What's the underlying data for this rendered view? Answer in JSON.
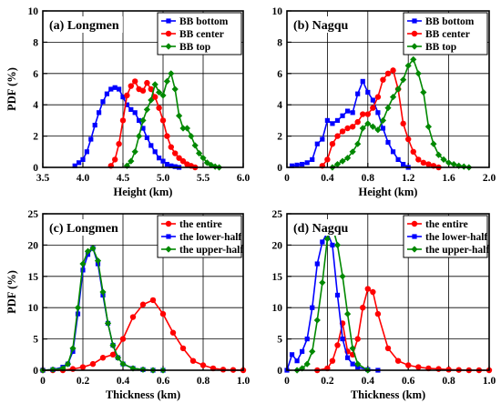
{
  "colors": {
    "bottom": "#0000ff",
    "center": "#ff0000",
    "top": "#008800"
  },
  "chart_data": [
    {
      "type": "line",
      "title": "(a) Longmen",
      "xlabel": "Height (km)",
      "ylabel": "PDF (%)",
      "xlim": [
        3.5,
        6.0
      ],
      "ylim": [
        0,
        10
      ],
      "xticks": [
        3.5,
        4.0,
        4.5,
        5.0,
        5.5,
        6.0
      ],
      "xtick_labels": [
        "3.5",
        "4.0",
        "4.5",
        "5.0",
        "5.5",
        "6.0"
      ],
      "yticks": [
        0,
        2,
        4,
        6,
        8,
        10
      ],
      "ytick_labels": [
        "0",
        "2",
        "4",
        "6",
        "8",
        "10"
      ],
      "grid": true,
      "legend_position": "top-right",
      "series": [
        {
          "name": "BB bottom",
          "color_key": "bottom",
          "marker": "square",
          "x": [
            3.9,
            3.95,
            4.0,
            4.05,
            4.1,
            4.15,
            4.2,
            4.25,
            4.3,
            4.35,
            4.4,
            4.45,
            4.5,
            4.55,
            4.6,
            4.65,
            4.7,
            4.75,
            4.8,
            4.85,
            4.9,
            4.95,
            5.0,
            5.05,
            5.1,
            5.15,
            5.2
          ],
          "y": [
            0.1,
            0.3,
            0.5,
            1.0,
            1.8,
            2.7,
            3.5,
            4.2,
            4.7,
            5.0,
            5.1,
            5.0,
            4.5,
            4.0,
            3.7,
            3.5,
            3.0,
            2.5,
            1.9,
            1.4,
            1.0,
            0.6,
            0.4,
            0.2,
            0.1,
            0.05,
            0.0
          ]
        },
        {
          "name": "BB center",
          "color_key": "center",
          "marker": "circle",
          "x": [
            4.35,
            4.4,
            4.45,
            4.5,
            4.55,
            4.6,
            4.65,
            4.7,
            4.75,
            4.8,
            4.85,
            4.9,
            4.95,
            5.0,
            5.05,
            5.1,
            5.15,
            5.2,
            5.25,
            5.3,
            5.35,
            5.4
          ],
          "y": [
            0.1,
            0.5,
            1.5,
            3.0,
            4.6,
            5.2,
            5.5,
            5.0,
            4.9,
            5.4,
            5.0,
            4.5,
            3.8,
            3.0,
            2.0,
            1.3,
            0.9,
            0.6,
            0.4,
            0.2,
            0.1,
            0.0
          ]
        },
        {
          "name": "BB top",
          "color_key": "top",
          "marker": "diamond",
          "x": [
            4.55,
            4.6,
            4.65,
            4.7,
            4.75,
            4.8,
            4.85,
            4.9,
            4.95,
            5.0,
            5.05,
            5.1,
            5.15,
            5.2,
            5.25,
            5.3,
            5.35,
            5.4,
            5.45,
            5.5,
            5.55,
            5.6,
            5.65,
            5.7
          ],
          "y": [
            0.1,
            0.4,
            1.0,
            2.0,
            3.0,
            3.7,
            4.3,
            5.3,
            4.8,
            4.6,
            5.5,
            6.0,
            5.0,
            3.3,
            2.5,
            2.5,
            2.0,
            1.4,
            0.9,
            0.6,
            0.3,
            0.15,
            0.05,
            0.0
          ]
        }
      ]
    },
    {
      "type": "line",
      "title": "(b) Nagqu",
      "xlabel": "Height (km)",
      "ylabel": "",
      "xlim": [
        0,
        2.0
      ],
      "ylim": [
        0,
        10
      ],
      "xticks": [
        0,
        0.4,
        0.8,
        1.2,
        1.6,
        2.0
      ],
      "xtick_labels": [
        "0",
        "0.4",
        "0.8",
        "1.2",
        "1.6",
        "2.0"
      ],
      "yticks": [
        0,
        2,
        4,
        6,
        8,
        10
      ],
      "ytick_labels": [
        "0",
        "2",
        "4",
        "6",
        "8",
        "10"
      ],
      "grid": true,
      "legend_position": "top-right",
      "series": [
        {
          "name": "BB bottom",
          "color_key": "bottom",
          "marker": "square",
          "x": [
            0.05,
            0.1,
            0.15,
            0.2,
            0.25,
            0.3,
            0.35,
            0.4,
            0.45,
            0.5,
            0.55,
            0.6,
            0.65,
            0.7,
            0.75,
            0.8,
            0.85,
            0.9,
            0.95,
            1.0,
            1.05,
            1.1,
            1.15,
            1.2
          ],
          "y": [
            0.1,
            0.15,
            0.2,
            0.3,
            0.5,
            1.5,
            1.8,
            3.0,
            2.8,
            3.0,
            3.3,
            3.6,
            3.5,
            4.7,
            5.5,
            4.8,
            4.3,
            3.5,
            2.5,
            1.6,
            1.0,
            0.5,
            0.2,
            0.0
          ]
        },
        {
          "name": "BB center",
          "color_key": "center",
          "marker": "circle",
          "x": [
            0.35,
            0.4,
            0.45,
            0.5,
            0.55,
            0.6,
            0.65,
            0.7,
            0.75,
            0.8,
            0.85,
            0.9,
            0.95,
            1.0,
            1.05,
            1.1,
            1.15,
            1.2,
            1.25,
            1.3,
            1.35,
            1.4,
            1.45,
            1.5
          ],
          "y": [
            0.1,
            0.5,
            1.5,
            2.0,
            2.3,
            2.5,
            2.6,
            2.9,
            3.4,
            3.4,
            3.8,
            4.5,
            5.6,
            6.0,
            6.2,
            5.0,
            2.8,
            1.8,
            1.0,
            0.5,
            0.3,
            0.2,
            0.1,
            0.0
          ]
        },
        {
          "name": "BB top",
          "color_key": "top",
          "marker": "diamond",
          "x": [
            0.45,
            0.5,
            0.55,
            0.6,
            0.65,
            0.7,
            0.75,
            0.8,
            0.85,
            0.9,
            0.95,
            1.0,
            1.05,
            1.1,
            1.15,
            1.2,
            1.25,
            1.3,
            1.35,
            1.4,
            1.45,
            1.5,
            1.55,
            1.6,
            1.65,
            1.7,
            1.75,
            1.8
          ],
          "y": [
            0.0,
            0.2,
            0.4,
            0.6,
            1.0,
            1.5,
            2.5,
            2.8,
            2.6,
            2.4,
            3.0,
            3.8,
            4.5,
            5.0,
            5.6,
            6.5,
            6.9,
            6.0,
            4.8,
            2.6,
            1.5,
            0.8,
            0.5,
            0.3,
            0.2,
            0.1,
            0.05,
            0.0
          ]
        }
      ]
    },
    {
      "type": "line",
      "title": "(c) Longmen",
      "xlabel": "Thickness (km)",
      "ylabel": "PDF (%)",
      "xlim": [
        0,
        1.0
      ],
      "ylim": [
        0,
        25
      ],
      "xticks": [
        0,
        0.2,
        0.4,
        0.6,
        0.8,
        1.0
      ],
      "xtick_labels": [
        "0",
        "0.2",
        "0.4",
        "0.6",
        "0.8",
        "1.0"
      ],
      "yticks": [
        0,
        5,
        10,
        15,
        20,
        25
      ],
      "ytick_labels": [
        "0",
        "5",
        "10",
        "15",
        "20",
        "25"
      ],
      "grid": true,
      "legend_position": "top-right",
      "series": [
        {
          "name": "the entire",
          "color_key": "center",
          "marker": "circle",
          "x": [
            0.0,
            0.05,
            0.1,
            0.15,
            0.2,
            0.25,
            0.3,
            0.35,
            0.4,
            0.45,
            0.5,
            0.55,
            0.6,
            0.65,
            0.7,
            0.75,
            0.8,
            0.85,
            0.9,
            0.95,
            1.0
          ],
          "y": [
            0.0,
            0.0,
            0.0,
            0.2,
            0.5,
            1.0,
            2.0,
            2.5,
            5.0,
            8.5,
            10.5,
            11.2,
            9.0,
            6.0,
            3.5,
            1.5,
            0.8,
            0.3,
            0.1,
            0.05,
            0.0
          ]
        },
        {
          "name": "the lower-half",
          "color_key": "bottom",
          "marker": "square",
          "x": [
            0.0,
            0.05,
            0.1,
            0.125,
            0.15,
            0.175,
            0.2,
            0.225,
            0.25,
            0.275,
            0.3,
            0.325,
            0.35,
            0.375,
            0.4,
            0.45,
            0.5,
            0.55,
            0.6
          ],
          "y": [
            0.0,
            0.1,
            0.5,
            1.0,
            3.0,
            9.0,
            16.0,
            18.5,
            19.5,
            17.0,
            12.0,
            7.5,
            4.0,
            2.0,
            1.0,
            0.3,
            0.1,
            0.0,
            0.0
          ]
        },
        {
          "name": "the upper-half",
          "color_key": "top",
          "marker": "diamond",
          "x": [
            0.0,
            0.05,
            0.1,
            0.125,
            0.15,
            0.175,
            0.2,
            0.225,
            0.25,
            0.275,
            0.3,
            0.325,
            0.35,
            0.375,
            0.4,
            0.45,
            0.5,
            0.55,
            0.6
          ],
          "y": [
            0.0,
            0.1,
            0.3,
            1.0,
            3.5,
            10.0,
            17.0,
            19.0,
            19.5,
            17.5,
            12.5,
            7.5,
            4.0,
            2.0,
            1.0,
            0.3,
            0.1,
            0.0,
            0.0
          ]
        }
      ]
    },
    {
      "type": "line",
      "title": "(d) Nagqu",
      "xlabel": "Thickness (km)",
      "ylabel": "",
      "xlim": [
        0,
        1.0
      ],
      "ylim": [
        0,
        25
      ],
      "xticks": [
        0,
        0.2,
        0.4,
        0.6,
        0.8,
        1.0
      ],
      "xtick_labels": [
        "0",
        "0.2",
        "0.4",
        "0.6",
        "0.8",
        "1.0"
      ],
      "yticks": [
        0,
        5,
        10,
        15,
        20,
        25
      ],
      "ytick_labels": [
        "0",
        "5",
        "10",
        "15",
        "20",
        "25"
      ],
      "grid": true,
      "legend_position": "top-right",
      "series": [
        {
          "name": "the entire",
          "color_key": "center",
          "marker": "circle",
          "x": [
            0.15,
            0.2,
            0.225,
            0.25,
            0.275,
            0.3,
            0.325,
            0.35,
            0.375,
            0.4,
            0.425,
            0.45,
            0.5,
            0.55,
            0.6,
            0.65,
            0.7,
            0.75,
            0.8,
            0.85,
            0.9,
            0.95,
            1.0
          ],
          "y": [
            0.0,
            0.3,
            1.5,
            4.0,
            7.5,
            3.0,
            2.5,
            5.0,
            10.0,
            13.0,
            12.5,
            9.0,
            3.5,
            1.5,
            0.8,
            0.5,
            0.3,
            0.2,
            0.1,
            0.05,
            0.0,
            0.0,
            0.0
          ]
        },
        {
          "name": "the lower-half",
          "color_key": "bottom",
          "marker": "square",
          "x": [
            0.0,
            0.025,
            0.05,
            0.075,
            0.1,
            0.125,
            0.15,
            0.175,
            0.2,
            0.225,
            0.25,
            0.275,
            0.3,
            0.325,
            0.35,
            0.4,
            0.45
          ],
          "y": [
            0.0,
            2.5,
            1.5,
            3.0,
            5.0,
            10.0,
            17.0,
            20.5,
            22.0,
            20.0,
            12.0,
            5.0,
            2.0,
            1.0,
            0.5,
            0.1,
            0.0
          ]
        },
        {
          "name": "the upper-half",
          "color_key": "top",
          "marker": "diamond",
          "x": [
            0.05,
            0.075,
            0.1,
            0.125,
            0.15,
            0.175,
            0.2,
            0.225,
            0.25,
            0.275,
            0.3,
            0.325,
            0.35,
            0.4
          ],
          "y": [
            0.0,
            0.3,
            1.0,
            3.0,
            8.0,
            14.0,
            21.0,
            23.0,
            20.0,
            15.0,
            9.0,
            3.5,
            1.0,
            0.0
          ]
        }
      ]
    }
  ]
}
